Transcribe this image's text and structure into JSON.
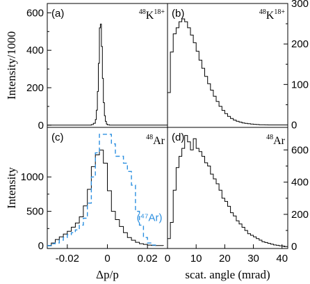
{
  "chart_data": [
    {
      "panel": "a",
      "type": "line",
      "label": "(a)",
      "nuclide": {
        "mass": "48",
        "symbol": "K",
        "charge": "18+"
      },
      "ylabel": "Intensity/1000",
      "y_axis_side": "left",
      "xlim": [
        -0.03,
        0.03
      ],
      "ylim": [
        -12,
        650
      ],
      "yticks": [
        0,
        200,
        400,
        600
      ],
      "series": [
        {
          "color": "#000000",
          "step": true,
          "x": [
            -0.03,
            -0.01,
            -0.008,
            -0.007,
            -0.006,
            -0.0055,
            -0.005,
            -0.0045,
            -0.004,
            -0.0035,
            -0.003,
            -0.0025,
            -0.002,
            -0.0015,
            -0.001,
            -0.0005,
            0.0,
            0.001,
            0.03
          ],
          "y": [
            0,
            0,
            3,
            10,
            30,
            80,
            180,
            330,
            520,
            540,
            420,
            250,
            120,
            50,
            20,
            6,
            2,
            0,
            0
          ]
        }
      ]
    },
    {
      "panel": "b",
      "type": "line",
      "label": "(b)",
      "nuclide": {
        "mass": "48",
        "symbol": "K",
        "charge": "18+"
      },
      "ylabel": "",
      "y_axis_side": "right",
      "xlim": [
        0,
        42
      ],
      "ylim": [
        -6,
        300
      ],
      "yticks": [
        0,
        100,
        200,
        300
      ],
      "series": [
        {
          "color": "#000000",
          "step": true,
          "x": [
            0,
            1,
            2,
            3,
            4,
            5,
            6,
            7,
            8,
            9,
            10,
            11,
            12,
            13,
            14,
            15,
            16,
            17,
            18,
            19,
            20,
            21,
            22,
            23,
            24,
            25,
            26,
            27,
            28,
            29,
            30,
            31,
            32,
            33,
            34,
            35,
            36,
            42
          ],
          "y": [
            80,
            180,
            225,
            240,
            255,
            262,
            255,
            240,
            222,
            203,
            182,
            160,
            140,
            120,
            102,
            86,
            71,
            58,
            46,
            36,
            28,
            21,
            16,
            12,
            9,
            7,
            5,
            4,
            3,
            2,
            1.5,
            1,
            0.6,
            0.4,
            0.2,
            0.1,
            0,
            0
          ]
        }
      ]
    },
    {
      "panel": "c",
      "type": "line",
      "label": "(c)",
      "nuclide": {
        "mass": "48",
        "symbol": "Ar",
        "charge": ""
      },
      "ylabel": "Intensity",
      "y_axis_side": "left",
      "xlabel": "Δp/p",
      "xlim": [
        -0.03,
        0.03
      ],
      "xticks": [
        -0.02,
        0,
        0.02
      ],
      "xtick_labels": [
        "-0.02",
        "0",
        "0.02"
      ],
      "ylim": [
        -40,
        1720
      ],
      "yticks": [
        0,
        500,
        1000
      ],
      "annotation": {
        "text": "(⁴⁷Ar)",
        "color": "#2b8fe0"
      },
      "series": [
        {
          "color": "#000000",
          "step": true,
          "x": [
            -0.03,
            -0.028,
            -0.026,
            -0.024,
            -0.022,
            -0.02,
            -0.018,
            -0.016,
            -0.014,
            -0.012,
            -0.01,
            -0.008,
            -0.006,
            -0.004,
            -0.002,
            0.0,
            0.002,
            0.004,
            0.006,
            0.008,
            0.01,
            0.012,
            0.014,
            0.016,
            0.018,
            0.02,
            0.022,
            0.024,
            0.026,
            0.028
          ],
          "y": [
            5,
            40,
            90,
            130,
            170,
            210,
            270,
            330,
            420,
            580,
            820,
            1150,
            1320,
            1390,
            1200,
            800,
            500,
            380,
            280,
            190,
            120,
            80,
            50,
            30,
            20,
            10,
            5,
            3,
            2,
            1
          ]
        },
        {
          "color": "#2b8fe0",
          "dashed": true,
          "step": true,
          "x": [
            -0.03,
            -0.028,
            -0.026,
            -0.024,
            -0.022,
            -0.02,
            -0.018,
            -0.016,
            -0.014,
            -0.012,
            -0.01,
            -0.008,
            -0.006,
            -0.004,
            -0.002,
            0.0,
            0.002,
            0.004,
            0.006,
            0.008,
            0.01,
            0.012,
            0.014,
            0.016,
            0.018,
            0.02,
            0.022,
            0.024
          ],
          "y": [
            0,
            30,
            40,
            80,
            120,
            160,
            190,
            230,
            300,
            400,
            620,
            1000,
            1350,
            1620,
            1620,
            1620,
            1480,
            1300,
            1300,
            1200,
            1080,
            880,
            500,
            300,
            120,
            40,
            10,
            0
          ]
        }
      ]
    },
    {
      "panel": "d",
      "type": "line",
      "label": "(d)",
      "nuclide": {
        "mass": "48",
        "symbol": "Ar",
        "charge": ""
      },
      "ylabel": "",
      "y_axis_side": "right",
      "xlabel": "scat. angle (mrad)",
      "xlim": [
        0,
        42
      ],
      "xticks": [
        0,
        10,
        20,
        30,
        40
      ],
      "xtick_labels": [
        "0",
        "10",
        "20",
        "30",
        "40"
      ],
      "ylim": [
        -12,
        740
      ],
      "yticks": [
        0,
        200,
        400,
        600
      ],
      "series": [
        {
          "color": "#000000",
          "step": true,
          "x": [
            0,
            1,
            2,
            3,
            4,
            5,
            6,
            7,
            8,
            9,
            10,
            11,
            12,
            13,
            14,
            15,
            16,
            17,
            18,
            19,
            20,
            21,
            22,
            23,
            24,
            25,
            26,
            27,
            28,
            29,
            30,
            31,
            32,
            33,
            34,
            35,
            36,
            37,
            38,
            39,
            40,
            41
          ],
          "y": [
            50,
            150,
            350,
            490,
            560,
            610,
            690,
            650,
            600,
            670,
            610,
            590,
            560,
            520,
            500,
            450,
            420,
            390,
            350,
            300,
            280,
            250,
            210,
            190,
            160,
            140,
            120,
            100,
            80,
            70,
            60,
            50,
            40,
            30,
            25,
            20,
            15,
            10,
            8,
            5,
            3,
            2
          ]
        }
      ]
    }
  ]
}
